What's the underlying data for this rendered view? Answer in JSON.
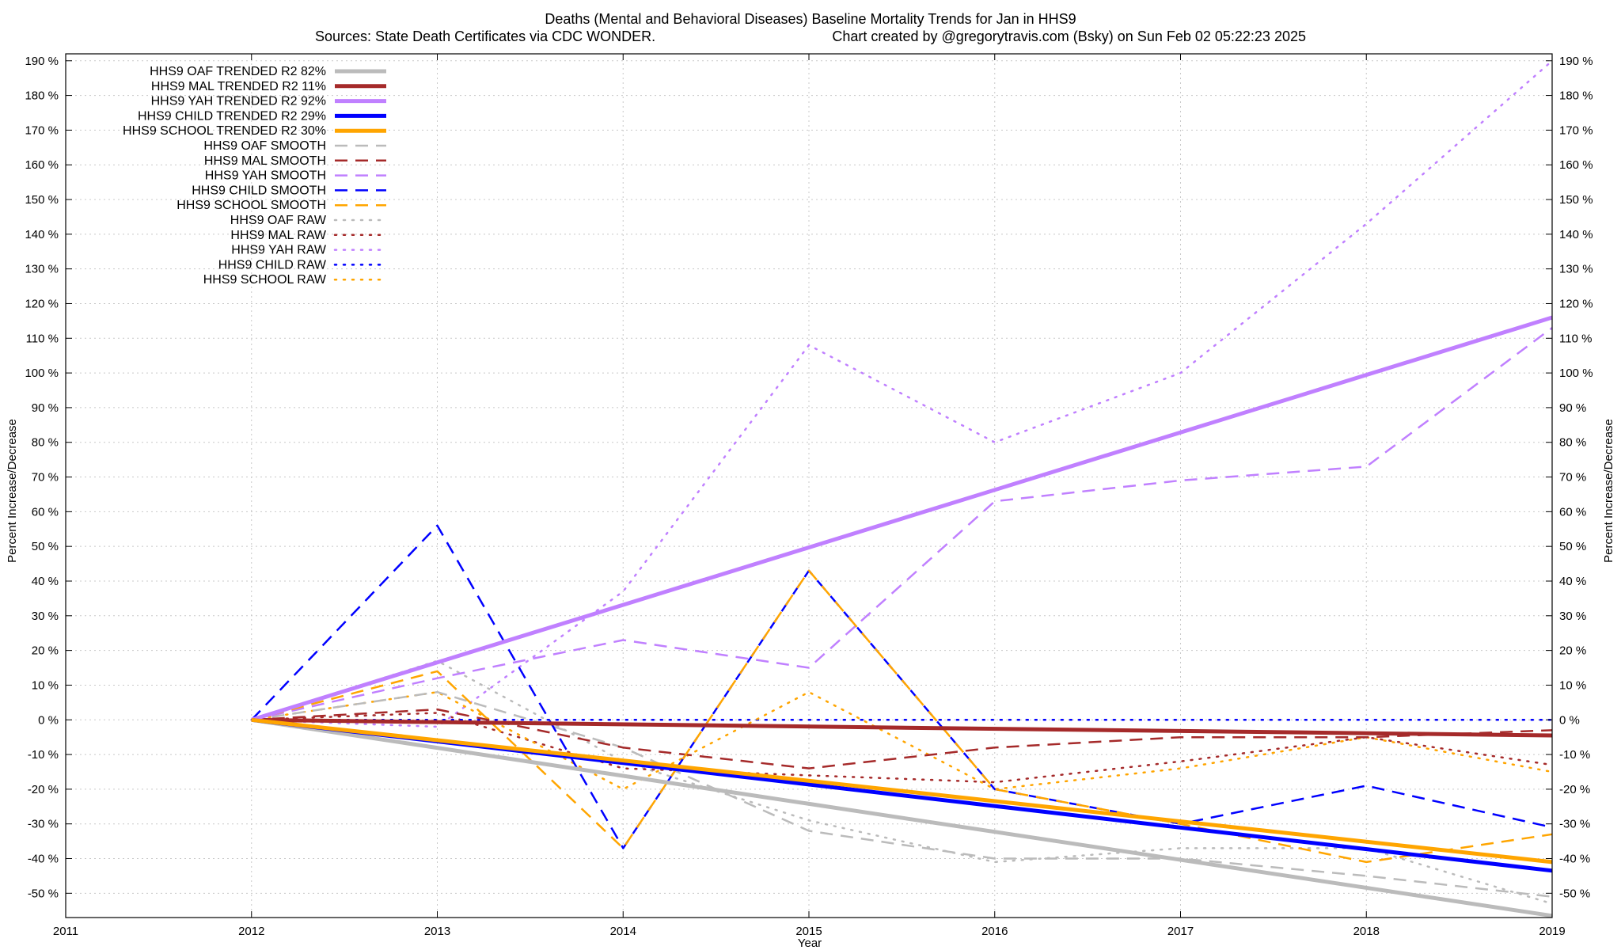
{
  "chart_data": {
    "type": "line",
    "title": "Deaths (Mental and Behavioral Diseases)  Baseline Mortality Trends for Jan in HHS9",
    "subtitle_left": "Sources: State Death Certificates via CDC WONDER.",
    "subtitle_right": "Chart created by @gregorytravis.com (Bsky) on Sun Feb 02 05:22:23 2025",
    "xlabel": "Year",
    "ylabel": "Percent Increase/Decrease",
    "ylabel_right": "Percent Increase/Decrease",
    "xlim": [
      2011,
      2019
    ],
    "ylim": [
      -57,
      192
    ],
    "x_ticks": [
      2011,
      2012,
      2013,
      2014,
      2015,
      2016,
      2017,
      2018,
      2019
    ],
    "y_ticks": [
      -50,
      -40,
      -30,
      -20,
      -10,
      0,
      10,
      20,
      30,
      40,
      50,
      60,
      70,
      80,
      90,
      100,
      110,
      120,
      130,
      140,
      150,
      160,
      170,
      180,
      190
    ],
    "y_tick_suffix": " %",
    "grid": true,
    "legend_position": "top-left",
    "series": [
      {
        "name": "HHS9 OAF TRENDED R2  82%",
        "style": "trend",
        "color": "#bbbbbb",
        "x": [
          2012,
          2019
        ],
        "y": [
          0,
          -56.5
        ]
      },
      {
        "name": "HHS9 MAL TRENDED R2  11%",
        "style": "trend",
        "color": "#a52a2a",
        "x": [
          2012,
          2019
        ],
        "y": [
          0,
          -4.5
        ]
      },
      {
        "name": "HHS9 YAH TRENDED R2  92%",
        "style": "trend",
        "color": "#c080ff",
        "x": [
          2012,
          2019
        ],
        "y": [
          0,
          116
        ]
      },
      {
        "name": "HHS9 CHILD TRENDED R2  29%",
        "style": "trend",
        "color": "#0000ff",
        "x": [
          2012,
          2019
        ],
        "y": [
          0,
          -43.5
        ]
      },
      {
        "name": "HHS9 SCHOOL TRENDED R2  30%",
        "style": "trend",
        "color": "#ffa500",
        "x": [
          2012,
          2019
        ],
        "y": [
          0,
          -41
        ]
      },
      {
        "name": "HHS9 OAF SMOOTH",
        "style": "smooth",
        "color": "#bbbbbb",
        "x": [
          2012,
          2013,
          2014,
          2015,
          2016,
          2017,
          2018,
          2019
        ],
        "y": [
          0,
          8,
          -8,
          -32,
          -40,
          -40,
          -45,
          -51
        ]
      },
      {
        "name": "HHS9 MAL SMOOTH",
        "style": "smooth",
        "color": "#a52a2a",
        "x": [
          2012,
          2013,
          2014,
          2015,
          2016,
          2017,
          2018,
          2019
        ],
        "y": [
          0,
          3,
          -8,
          -14,
          -8,
          -5,
          -5,
          -3
        ]
      },
      {
        "name": "HHS9 YAH SMOOTH",
        "style": "smooth",
        "color": "#c080ff",
        "x": [
          2012,
          2013,
          2014,
          2015,
          2016,
          2017,
          2018,
          2019
        ],
        "y": [
          0,
          12,
          23,
          15,
          63,
          69,
          73,
          113
        ]
      },
      {
        "name": "HHS9 CHILD SMOOTH",
        "style": "smooth",
        "color": "#0000ff",
        "x": [
          2012,
          2013,
          2014,
          2015,
          2016,
          2017,
          2018,
          2019
        ],
        "y": [
          0,
          56,
          -37,
          43,
          -20,
          -30,
          -19,
          -31
        ]
      },
      {
        "name": "HHS9 SCHOOL SMOOTH",
        "style": "smooth",
        "color": "#ffa500",
        "x": [
          2012,
          2013,
          2014,
          2015,
          2016,
          2017,
          2018,
          2019
        ],
        "y": [
          0,
          14,
          -37,
          43,
          -20,
          -30,
          -41,
          -33
        ]
      },
      {
        "name": "HHS9 OAF RAW",
        "style": "raw",
        "color": "#bbbbbb",
        "x": [
          2012,
          2013,
          2014,
          2015,
          2016,
          2017,
          2018,
          2019
        ],
        "y": [
          0,
          17,
          -12,
          -29,
          -41,
          -37,
          -37,
          -53
        ]
      },
      {
        "name": "HHS9 MAL RAW",
        "style": "raw",
        "color": "#a52a2a",
        "x": [
          2012,
          2013,
          2014,
          2015,
          2016,
          2017,
          2018,
          2019
        ],
        "y": [
          0,
          2,
          -14,
          -16,
          -18,
          -12,
          -5,
          -13
        ]
      },
      {
        "name": "HHS9 YAH RAW",
        "style": "raw",
        "color": "#c080ff",
        "x": [
          2012,
          2013,
          2014,
          2015,
          2016,
          2017,
          2018,
          2019
        ],
        "y": [
          0,
          -2,
          37,
          108,
          80,
          100,
          143,
          190
        ]
      },
      {
        "name": "HHS9 CHILD RAW",
        "style": "raw",
        "color": "#0000ff",
        "x": [
          2012,
          2013,
          2014,
          2015,
          2016,
          2017,
          2018,
          2019
        ],
        "y": [
          0,
          0,
          0,
          0,
          0,
          0,
          0,
          0
        ]
      },
      {
        "name": "HHS9 SCHOOL RAW",
        "style": "raw",
        "color": "#ffa500",
        "x": [
          2012,
          2013,
          2014,
          2015,
          2016,
          2017,
          2018,
          2019
        ],
        "y": [
          0,
          8,
          -20,
          8,
          -20,
          -14,
          -5,
          -15
        ]
      }
    ]
  }
}
